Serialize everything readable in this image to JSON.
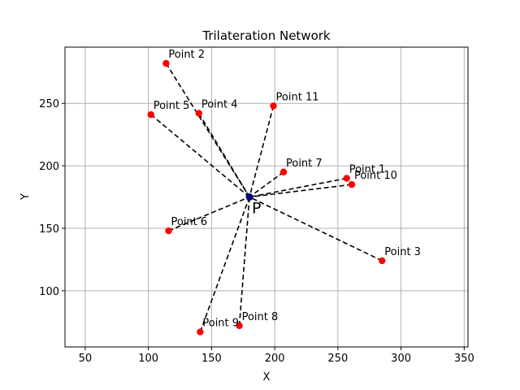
{
  "chart_data": {
    "type": "scatter",
    "title": "Trilateration Network",
    "xlabel": "X",
    "ylabel": "Y",
    "xlim": [
      34,
      353
    ],
    "ylim": [
      55,
      295
    ],
    "xticks": [
      50,
      100,
      150,
      200,
      250,
      300,
      350
    ],
    "yticks": [
      100,
      150,
      200,
      250
    ],
    "grid": true,
    "center": {
      "label": "P",
      "x": 180,
      "y": 175,
      "color": "#00007f"
    },
    "points": [
      {
        "label": "Point 1",
        "x": 257,
        "y": 190
      },
      {
        "label": "Point 2",
        "x": 114,
        "y": 282
      },
      {
        "label": "Point 3",
        "x": 285,
        "y": 124
      },
      {
        "label": "Point 4",
        "x": 140,
        "y": 242
      },
      {
        "label": "Point 5",
        "x": 102,
        "y": 241
      },
      {
        "label": "Point 6",
        "x": 116,
        "y": 148
      },
      {
        "label": "Point 7",
        "x": 207,
        "y": 195
      },
      {
        "label": "Point 8",
        "x": 172,
        "y": 72
      },
      {
        "label": "Point 9",
        "x": 141,
        "y": 67
      },
      {
        "label": "Point 10",
        "x": 261,
        "y": 185
      },
      {
        "label": "Point 11",
        "x": 199,
        "y": 248
      }
    ],
    "point_color": "#ff0000",
    "line_style": "dashed"
  }
}
